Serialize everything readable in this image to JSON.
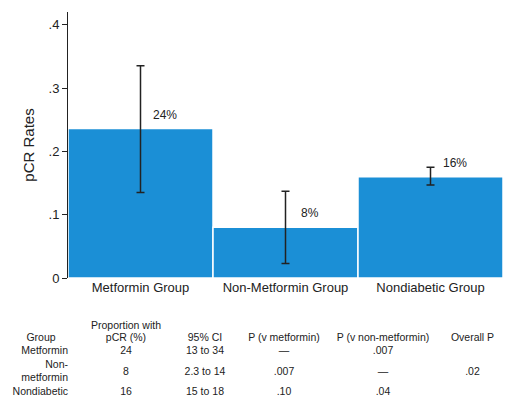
{
  "chart_data": {
    "type": "bar",
    "y_label": "pCR Rates",
    "categories": [
      "Metformin Group",
      "Non-Metformin Group",
      "Nondiabetic Group"
    ],
    "values": [
      0.236,
      0.08,
      0.16
    ],
    "value_labels": [
      "24%",
      "8%",
      "16%"
    ],
    "ci_low": [
      0.135,
      0.023,
      0.147
    ],
    "ci_high": [
      0.335,
      0.137,
      0.175
    ],
    "color": "#1b8fd6",
    "ylim": [
      0,
      0.42
    ],
    "yticks": [
      0,
      {
        "value": 0.1,
        "label": ".1"
      },
      {
        "value": 0.2,
        "label": ".2"
      },
      {
        "value": 0.3,
        "label": ".3"
      },
      {
        "value": 0.4,
        "label": ".4"
      }
    ],
    "grid": false,
    "data_labels": true
  },
  "table": {
    "header": [
      "Group",
      "Proportion with pCR (%)",
      "95% CI",
      "P (v metformin)",
      "P (v non-metformin)",
      "Overall P"
    ],
    "rows": [
      [
        "Metformin",
        "24",
        "13 to 34",
        "—",
        ".007",
        null
      ],
      [
        "Non-metformin",
        "8",
        "2.3 to 14",
        ".007",
        "—",
        ".02"
      ],
      [
        "Nondiabetic",
        "16",
        "15 to 18",
        ".10",
        ".04",
        null
      ]
    ]
  }
}
